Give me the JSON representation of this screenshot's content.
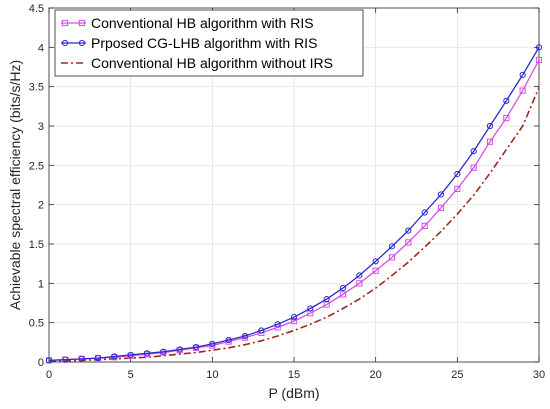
{
  "chart_data": {
    "type": "line",
    "xlabel": "P (dBm)",
    "ylabel": "Achievable spectral efficiency  (bits/s/Hz)",
    "xlim": [
      0,
      30
    ],
    "ylim": [
      0,
      4.5
    ],
    "xticks": [
      0,
      5,
      10,
      15,
      20,
      25,
      30
    ],
    "yticks": [
      0,
      0.5,
      1,
      1.5,
      2,
      2.5,
      3,
      3.5,
      4,
      4.5
    ],
    "xtick_labels": [
      "0",
      "5",
      "10",
      "15",
      "20",
      "25",
      "30"
    ],
    "ytick_labels": [
      "0",
      "0.5",
      "1",
      "1.5",
      "2",
      "2.5",
      "3",
      "3.5",
      "4",
      "4.5"
    ],
    "grid": true,
    "legend_position": "top-left",
    "x": [
      0,
      1,
      2,
      3,
      4,
      5,
      6,
      7,
      8,
      9,
      10,
      11,
      12,
      13,
      14,
      15,
      16,
      17,
      18,
      19,
      20,
      21,
      22,
      23,
      24,
      25,
      26,
      27,
      28,
      29,
      30
    ],
    "series": [
      {
        "name": "Conventional HB algorithm with RIS",
        "color": "#d84fe8",
        "marker": "square",
        "dash": "solid",
        "values": [
          0.02,
          0.03,
          0.04,
          0.05,
          0.06,
          0.08,
          0.1,
          0.12,
          0.15,
          0.18,
          0.21,
          0.26,
          0.31,
          0.37,
          0.44,
          0.52,
          0.62,
          0.73,
          0.86,
          1.0,
          1.16,
          1.33,
          1.52,
          1.73,
          1.96,
          2.2,
          2.47,
          2.8,
          3.1,
          3.45,
          3.84
        ]
      },
      {
        "name": "Prposed CG-LHB algorithm with RIS",
        "color": "#2b2bd1",
        "marker": "circle",
        "dash": "solid",
        "values": [
          0.02,
          0.03,
          0.04,
          0.05,
          0.07,
          0.09,
          0.11,
          0.13,
          0.16,
          0.19,
          0.23,
          0.28,
          0.33,
          0.4,
          0.48,
          0.57,
          0.68,
          0.8,
          0.94,
          1.1,
          1.28,
          1.47,
          1.67,
          1.9,
          2.13,
          2.39,
          2.68,
          3.0,
          3.32,
          3.65,
          4.0
        ]
      },
      {
        "name": "Conventional HB algorithm without IRS",
        "color": "#a0281e",
        "marker": "none",
        "dash": "dashdot",
        "values": [
          0.01,
          0.015,
          0.02,
          0.03,
          0.04,
          0.05,
          0.06,
          0.08,
          0.1,
          0.12,
          0.15,
          0.18,
          0.22,
          0.27,
          0.33,
          0.4,
          0.48,
          0.57,
          0.68,
          0.8,
          0.94,
          1.1,
          1.27,
          1.46,
          1.66,
          1.88,
          2.12,
          2.4,
          2.7,
          3.0,
          3.49
        ]
      }
    ]
  }
}
